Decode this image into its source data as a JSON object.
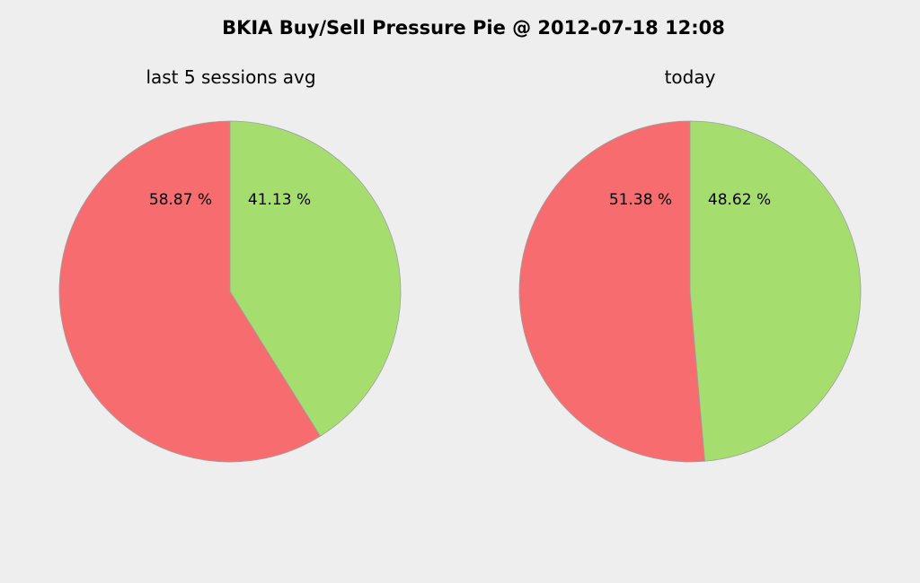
{
  "chart_data": {
    "title": "BKIA Buy/Sell Pressure Pie @ 2012-07-18 12:08",
    "type": "pie",
    "pies": [
      {
        "title": "last 5 sessions avg",
        "slices": [
          {
            "value": 41.13,
            "label": "41.13 %",
            "color": "#a5de6e"
          },
          {
            "value": 58.87,
            "label": "58.87 %",
            "color": "#f76c6f"
          }
        ]
      },
      {
        "title": "today",
        "slices": [
          {
            "value": 48.62,
            "label": "48.62 %",
            "color": "#a5de6e"
          },
          {
            "value": 51.38,
            "label": "51.38 %",
            "color": "#f76c6f"
          }
        ]
      }
    ]
  },
  "colors": {
    "background": "#eeeeee",
    "slice_edge": "#a0a0a0"
  }
}
